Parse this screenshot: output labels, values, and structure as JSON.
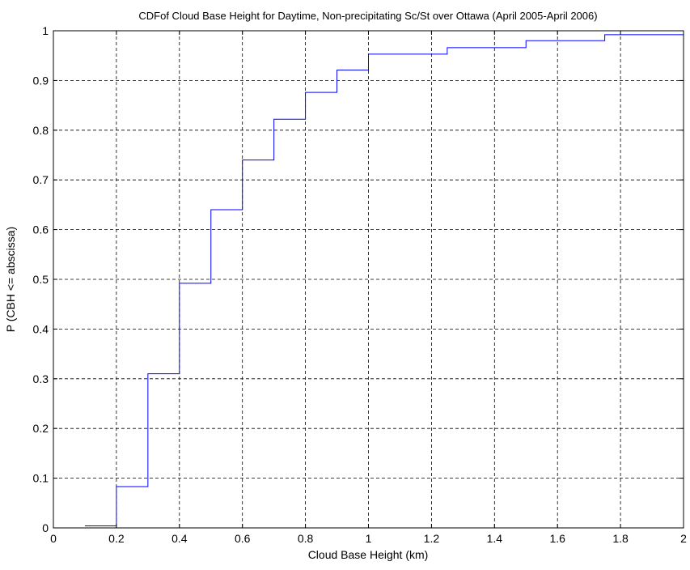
{
  "chart_data": {
    "type": "line",
    "title": "CDFof Cloud Base Height for Daytime, Non-precipitating Sc/St over Ottawa (April 2005-April 2006)",
    "xlabel": "Cloud Base Height (km)",
    "ylabel": "P (CBH <= abscissa)",
    "xlim": [
      0,
      2
    ],
    "ylim": [
      0,
      1
    ],
    "xticks": [
      "0",
      "0.2",
      "0.4",
      "0.6",
      "0.8",
      "1",
      "1.2",
      "1.4",
      "1.6",
      "1.8",
      "2"
    ],
    "yticks": [
      "0",
      "0.1",
      "0.2",
      "0.3",
      "0.4",
      "0.5",
      "0.6",
      "0.7",
      "0.8",
      "0.9",
      "1"
    ],
    "grid": true,
    "grid_style": "dashed",
    "line_color": "#0000ff",
    "series": [
      {
        "step": "post",
        "x": [
          0.1,
          0.2,
          0.3,
          0.4,
          0.5,
          0.6,
          0.7,
          0.8,
          0.9,
          1.0,
          1.25,
          1.5,
          1.75,
          2.0
        ],
        "y": [
          0.004,
          0.083,
          0.31,
          0.492,
          0.64,
          0.74,
          0.822,
          0.876,
          0.921,
          0.953,
          0.966,
          0.98,
          0.992,
          0.992
        ]
      }
    ]
  }
}
